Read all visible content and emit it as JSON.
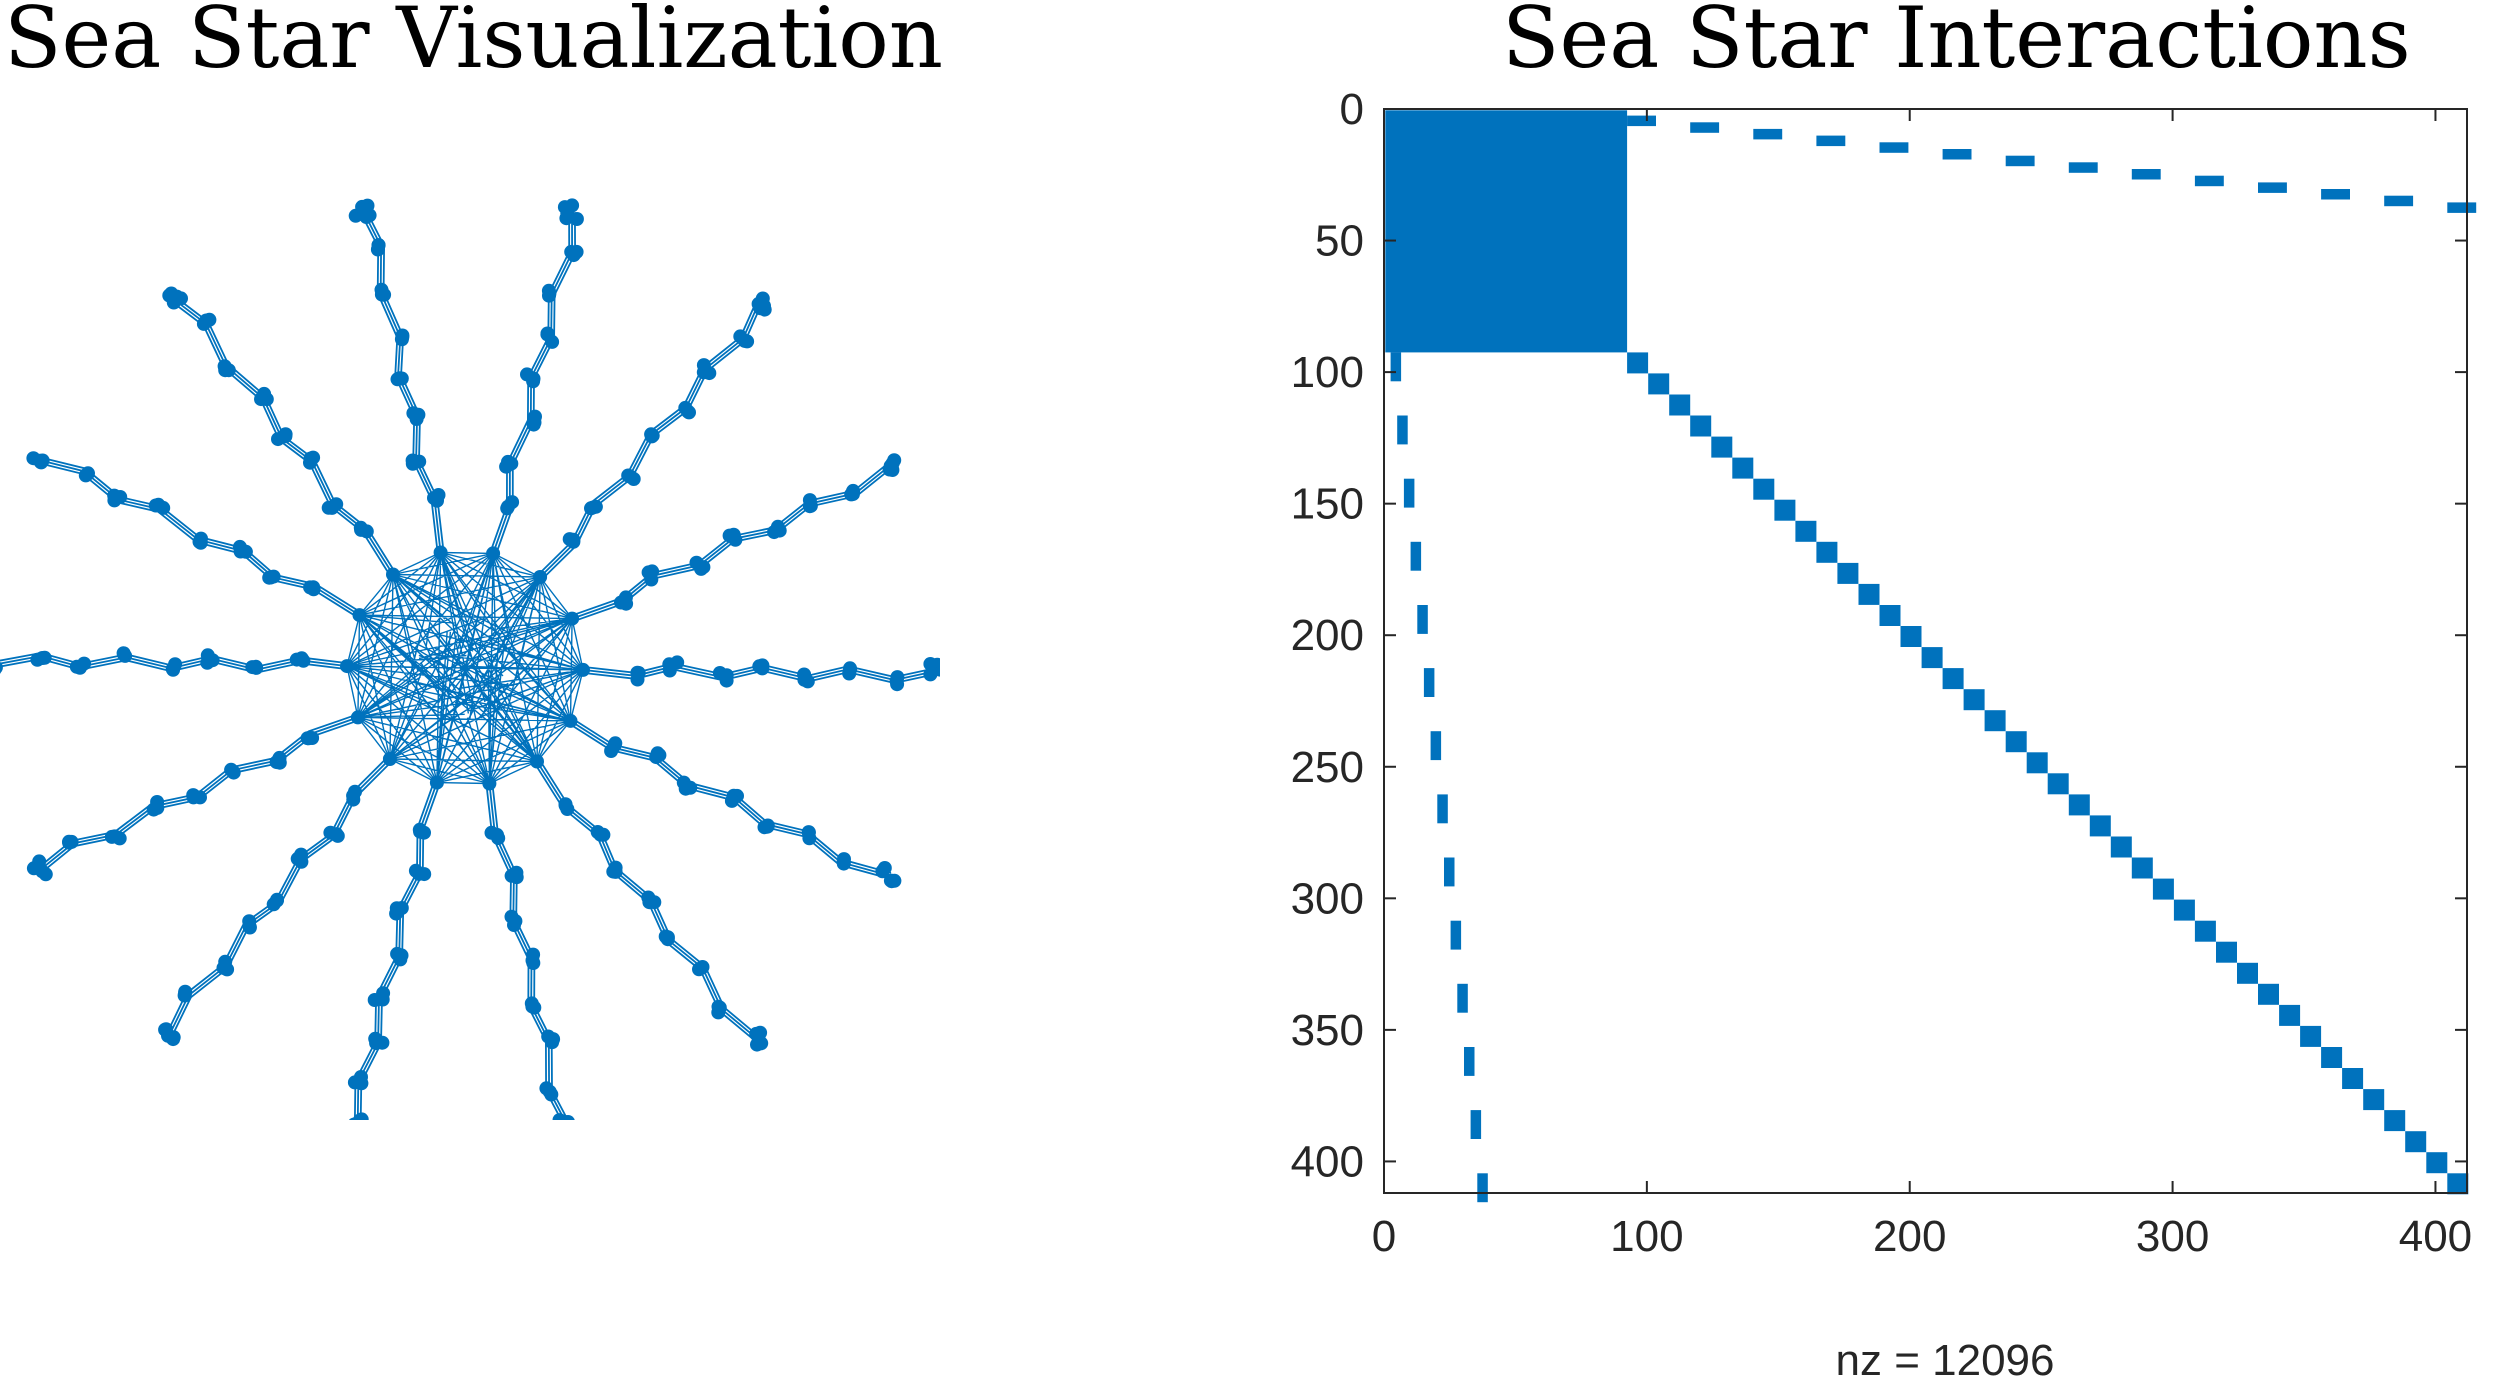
{
  "colors": {
    "mark": "#0072BD",
    "axis": "#262626"
  },
  "chart_data": [
    {
      "type": "network",
      "title": "Sea Star Visualization",
      "layout": "force",
      "axes_visible": false,
      "hub": {
        "node_count": 96,
        "connectivity": "all-to-all"
      },
      "arms": {
        "count": 14,
        "nodes_per_arm": 24,
        "chain_groups": 8
      }
    },
    {
      "type": "spy",
      "title": "Sea Star Interactions",
      "matrix_size": 412,
      "nz_label": "nz = 12096",
      "xlim": [
        0,
        412
      ],
      "ylim": [
        0,
        412
      ],
      "y_reversed": true,
      "xticks": [
        0,
        100,
        200,
        300,
        400
      ],
      "yticks": [
        0,
        50,
        100,
        150,
        200,
        250,
        300,
        350,
        400
      ],
      "dense_block": {
        "rows": [
          1,
          92
        ],
        "cols": [
          1,
          92
        ]
      },
      "diagonal_blocks": {
        "start": 93,
        "block_size": 8,
        "count": 40
      },
      "off_diagonal_dashes": {
        "count": 14,
        "row_range": [
          3,
          36
        ],
        "col_start": 93,
        "col_step": 24,
        "length": 10
      }
    }
  ]
}
